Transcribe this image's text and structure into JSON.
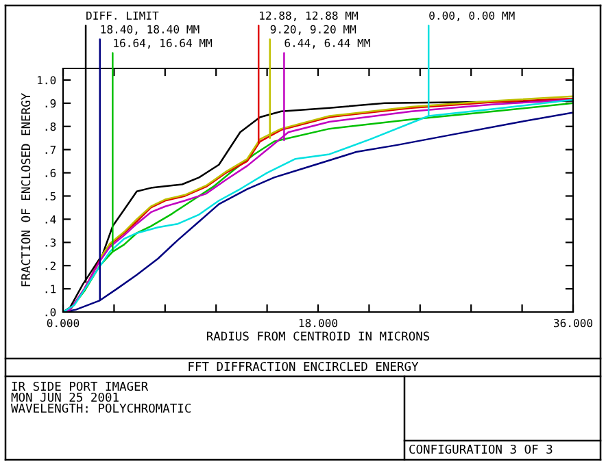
{
  "chart_data": {
    "type": "line",
    "title": "FFT DIFFRACTION ENCIRCLED ENERGY",
    "xlabel": "RADIUS FROM CENTROID IN MICRONS",
    "ylabel": "FRACTION OF ENCLOSED ENERGY",
    "xlim": [
      0,
      36
    ],
    "ylim": [
      0,
      1.05
    ],
    "xticks": [
      {
        "value": 0,
        "label": "0.000"
      },
      {
        "value": 3.6,
        "label": null
      },
      {
        "value": 7.2,
        "label": null
      },
      {
        "value": 10.8,
        "label": null
      },
      {
        "value": 14.4,
        "label": null
      },
      {
        "value": 18,
        "label": "18.000"
      },
      {
        "value": 21.6,
        "label": null
      },
      {
        "value": 25.2,
        "label": null
      },
      {
        "value": 28.8,
        "label": null
      },
      {
        "value": 32.4,
        "label": null
      },
      {
        "value": 36,
        "label": "36.000"
      }
    ],
    "yticks": [
      {
        "value": 0,
        "label": ".0"
      },
      {
        "value": 0.1,
        "label": ".1"
      },
      {
        "value": 0.2,
        "label": ".2"
      },
      {
        "value": 0.3,
        "label": ".3"
      },
      {
        "value": 0.4,
        "label": ".4"
      },
      {
        "value": 0.5,
        "label": ".5"
      },
      {
        "value": 0.6,
        "label": ".6"
      },
      {
        "value": 0.7,
        "label": ".7"
      },
      {
        "value": 0.8,
        "label": ".8"
      },
      {
        "value": 0.9,
        "label": ".9"
      },
      {
        "value": 1.0,
        "label": "1.0"
      }
    ],
    "grid": false,
    "marker": "none",
    "line_style": "solid",
    "series": [
      {
        "color": "#000000",
        "x": [
          0,
          0.5,
          1.4,
          2.8,
          3.5,
          4.3,
          5.2,
          6.2,
          7.6,
          8.4,
          9.6,
          11,
          12.5,
          13.9,
          15.4,
          18.8,
          22.7,
          28.5,
          36
        ],
        "values": [
          0,
          0.02,
          0.12,
          0.25,
          0.37,
          0.44,
          0.52,
          0.535,
          0.545,
          0.55,
          0.58,
          0.635,
          0.775,
          0.84,
          0.865,
          0.88,
          0.9,
          0.905,
          0.91
        ]
      },
      {
        "color": "#000080",
        "x": [
          0,
          0.9,
          2.6,
          3.8,
          5.2,
          6.7,
          8.1,
          9.6,
          11,
          13,
          14.9,
          17.8,
          20.7,
          23.6,
          27.5,
          32.3,
          36
        ],
        "values": [
          0,
          0.01,
          0.05,
          0.1,
          0.16,
          0.23,
          0.31,
          0.39,
          0.465,
          0.53,
          0.58,
          0.635,
          0.69,
          0.72,
          0.765,
          0.82,
          0.86
        ]
      },
      {
        "color": "#00c000",
        "x": [
          0,
          0.5,
          1.5,
          2.6,
          3.5,
          4.3,
          5.2,
          6.2,
          7.6,
          9.1,
          10.6,
          12,
          13.5,
          14.9,
          18.8,
          24.6,
          30.4,
          36
        ],
        "values": [
          0,
          0.01,
          0.09,
          0.2,
          0.26,
          0.29,
          0.34,
          0.37,
          0.42,
          0.48,
          0.54,
          0.61,
          0.68,
          0.735,
          0.79,
          0.83,
          0.865,
          0.9
        ]
      },
      {
        "color": "#e00000",
        "x": [
          0,
          0.5,
          1.5,
          2.6,
          3.3,
          4.3,
          5.2,
          6.2,
          7.2,
          8.6,
          10.1,
          11.5,
          13,
          13.9,
          15.4,
          18.8,
          24.6,
          30.4,
          36
        ],
        "values": [
          0,
          0.01,
          0.1,
          0.225,
          0.29,
          0.34,
          0.39,
          0.45,
          0.48,
          0.5,
          0.54,
          0.6,
          0.65,
          0.735,
          0.785,
          0.84,
          0.88,
          0.905,
          0.92
        ]
      },
      {
        "color": "#c0c000",
        "x": [
          2.6,
          3.3,
          4.3,
          5.2,
          6.2,
          7.2,
          8.6,
          10.1,
          11.5,
          13,
          13.9,
          15.4,
          18.8,
          24.6,
          30.4,
          36
        ],
        "values": [
          0.23,
          0.295,
          0.345,
          0.4,
          0.455,
          0.485,
          0.505,
          0.545,
          0.605,
          0.66,
          0.745,
          0.79,
          0.845,
          0.885,
          0.91,
          0.93
        ]
      },
      {
        "color": "#c000c0",
        "x": [
          0,
          0.5,
          1.5,
          2.6,
          3.3,
          4.3,
          5.2,
          6.2,
          7.2,
          8.6,
          10.1,
          11.5,
          13,
          14.4,
          15.9,
          18.8,
          24.6,
          30.4,
          36
        ],
        "values": [
          0,
          0.01,
          0.1,
          0.22,
          0.28,
          0.33,
          0.38,
          0.43,
          0.455,
          0.48,
          0.51,
          0.57,
          0.63,
          0.7,
          0.775,
          0.82,
          0.865,
          0.895,
          0.915
        ]
      },
      {
        "color": "#00e0e0",
        "x": [
          0,
          0.8,
          2.3,
          3.3,
          4.3,
          5.2,
          6.7,
          8.1,
          9.6,
          11,
          12.5,
          14.4,
          16.4,
          18.8,
          21.7,
          25.8,
          30.4,
          36
        ],
        "values": [
          0,
          0.03,
          0.17,
          0.26,
          0.315,
          0.34,
          0.365,
          0.38,
          0.42,
          0.48,
          0.53,
          0.6,
          0.66,
          0.68,
          0.745,
          0.845,
          0.875,
          0.915
        ]
      }
    ],
    "annotations": [
      {
        "text": "DIFF. LIMIT",
        "x": 1.6,
        "y": 0.13
      },
      {
        "text": "18.40, 18.40 MM",
        "x": 2.6,
        "y": 0.05
      },
      {
        "text": "16.64, 16.64 MM",
        "x": 3.5,
        "y": 0.26
      },
      {
        "text": "12.88, 12.88 MM",
        "x": 13.8,
        "y": 0.73
      },
      {
        "text": "9.20, 9.20 MM",
        "x": 14.6,
        "y": 0.75
      },
      {
        "text": "6.44, 6.44 MM",
        "x": 15.6,
        "y": 0.74
      },
      {
        "text": "0.00, 0.00 MM",
        "x": 25.8,
        "y": 0.85
      },
      "IR SIDE PORT IMAGER",
      "MON JUN 25 2001",
      "WAVELENGTH: POLYCHROMATIC",
      "CONFIGURATION 3 OF 3"
    ]
  }
}
